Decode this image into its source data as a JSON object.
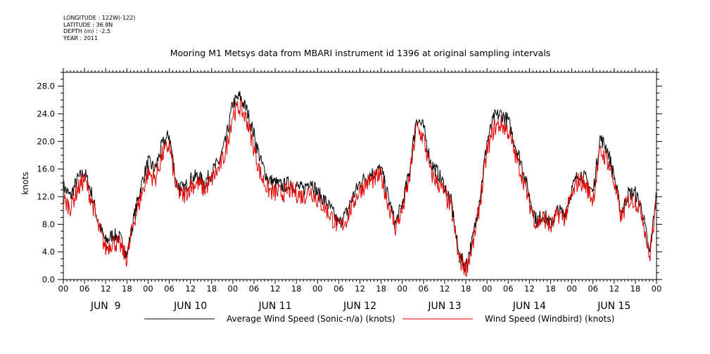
{
  "metadata": [
    "LONGITUDE : 122W(-122)",
    "LATITUDE : 36.8N",
    "DEPTH (m) : -2.5",
    "YEAR : 2011"
  ],
  "colors": {
    "sonic": "#000000",
    "windbird": "#e00000",
    "axis": "#000000"
  },
  "chart_data": {
    "type": "line",
    "title": "Mooring M1 Metsys data from MBARI instrument id 1396 at original sampling intervals",
    "xlabel": "",
    "ylabel": "knots",
    "ylim": [
      0,
      30
    ],
    "xlim_hours": [
      0,
      168
    ],
    "y_ticks": [
      "0.0",
      "4.0",
      "8.0",
      "12.0",
      "16.0",
      "20.0",
      "24.0",
      "28.0"
    ],
    "x_hour_labels": [
      "00",
      "06",
      "12",
      "18",
      "00",
      "06",
      "12",
      "18",
      "00",
      "06",
      "12",
      "18",
      "00",
      "06",
      "12",
      "18",
      "00",
      "06",
      "12",
      "18",
      "00",
      "06",
      "12",
      "18",
      "00",
      "06",
      "12",
      "18",
      "00"
    ],
    "day_labels": [
      "JUN  9",
      "JUN 10",
      "JUN 11",
      "JUN 12",
      "JUN 13",
      "JUN 14",
      "JUN 15"
    ],
    "grid": false,
    "legend_position": "bottom",
    "series": [
      {
        "name": "Average Wind Speed (Sonic-n/a) (knots)",
        "color": "#000000",
        "x": [
          0,
          2,
          4,
          6,
          8,
          10,
          12,
          14,
          16,
          18,
          20,
          22,
          24,
          26,
          28,
          30,
          32,
          34,
          36,
          38,
          40,
          42,
          44,
          46,
          48,
          50,
          52,
          54,
          56,
          58,
          60,
          62,
          64,
          66,
          68,
          70,
          72,
          74,
          76,
          78,
          80,
          82,
          84,
          86,
          88,
          90,
          92,
          94,
          96,
          98,
          100,
          102,
          104,
          106,
          108,
          110,
          112,
          114,
          116,
          118,
          120,
          122,
          124,
          126,
          128,
          130,
          132,
          134,
          136,
          138,
          140,
          142,
          144,
          146,
          148,
          150,
          152,
          154,
          156,
          158,
          160,
          162,
          164,
          166,
          168
        ],
        "y": [
          13.5,
          12.0,
          14.5,
          15.5,
          12.5,
          8.0,
          5.5,
          6.5,
          6.0,
          3.5,
          9.0,
          13.5,
          17.0,
          16.0,
          19.5,
          21.0,
          14.0,
          13.0,
          14.5,
          15.0,
          14.0,
          15.5,
          17.0,
          20.0,
          25.5,
          26.5,
          24.5,
          21.0,
          17.0,
          14.5,
          14.0,
          13.5,
          14.0,
          13.5,
          13.0,
          14.5,
          12.5,
          11.5,
          10.0,
          8.0,
          9.5,
          12.0,
          14.0,
          15.0,
          15.5,
          16.0,
          12.0,
          8.0,
          11.0,
          15.5,
          23.5,
          22.0,
          17.0,
          15.5,
          13.5,
          11.0,
          3.5,
          2.0,
          6.0,
          12.0,
          20.0,
          23.5,
          24.0,
          23.0,
          19.5,
          16.5,
          12.0,
          8.5,
          9.5,
          8.0,
          10.0,
          9.5,
          13.0,
          15.5,
          14.5,
          12.5,
          20.5,
          19.0,
          15.0,
          9.5,
          12.5,
          12.5,
          10.0,
          3.5,
          12.5
        ]
      },
      {
        "name": "Wind Speed (Windbird) (knots)",
        "color": "#e00000",
        "x": [
          0,
          2,
          4,
          6,
          8,
          10,
          12,
          14,
          16,
          18,
          20,
          22,
          24,
          26,
          28,
          30,
          32,
          34,
          36,
          38,
          40,
          42,
          44,
          46,
          48,
          50,
          52,
          54,
          56,
          58,
          60,
          62,
          64,
          66,
          68,
          70,
          72,
          74,
          76,
          78,
          80,
          82,
          84,
          86,
          88,
          90,
          92,
          94,
          96,
          98,
          100,
          102,
          104,
          106,
          108,
          110,
          112,
          114,
          116,
          118,
          120,
          122,
          124,
          126,
          128,
          130,
          132,
          134,
          136,
          138,
          140,
          142,
          144,
          146,
          148,
          150,
          152,
          154,
          156,
          158,
          160,
          162,
          164,
          166,
          168
        ],
        "y": [
          11.5,
          10.5,
          13.0,
          14.5,
          11.5,
          7.5,
          4.5,
          5.5,
          5.0,
          3.0,
          8.5,
          12.0,
          15.5,
          14.5,
          18.0,
          19.5,
          13.0,
          12.0,
          13.5,
          14.0,
          13.0,
          14.5,
          16.0,
          18.5,
          24.0,
          25.0,
          23.0,
          19.0,
          15.0,
          13.0,
          12.5,
          12.5,
          13.0,
          12.5,
          12.0,
          13.0,
          11.5,
          10.5,
          9.0,
          7.5,
          8.5,
          11.0,
          13.0,
          14.0,
          14.5,
          15.0,
          11.0,
          7.5,
          10.0,
          14.5,
          22.0,
          20.5,
          15.5,
          14.0,
          12.5,
          10.0,
          3.0,
          1.5,
          5.0,
          11.0,
          18.5,
          22.0,
          22.5,
          21.5,
          18.0,
          15.0,
          11.0,
          8.0,
          9.0,
          7.5,
          9.5,
          9.0,
          12.0,
          14.5,
          13.5,
          11.5,
          18.5,
          17.5,
          14.0,
          9.0,
          11.5,
          11.5,
          9.5,
          3.0,
          11.5
        ]
      }
    ]
  }
}
